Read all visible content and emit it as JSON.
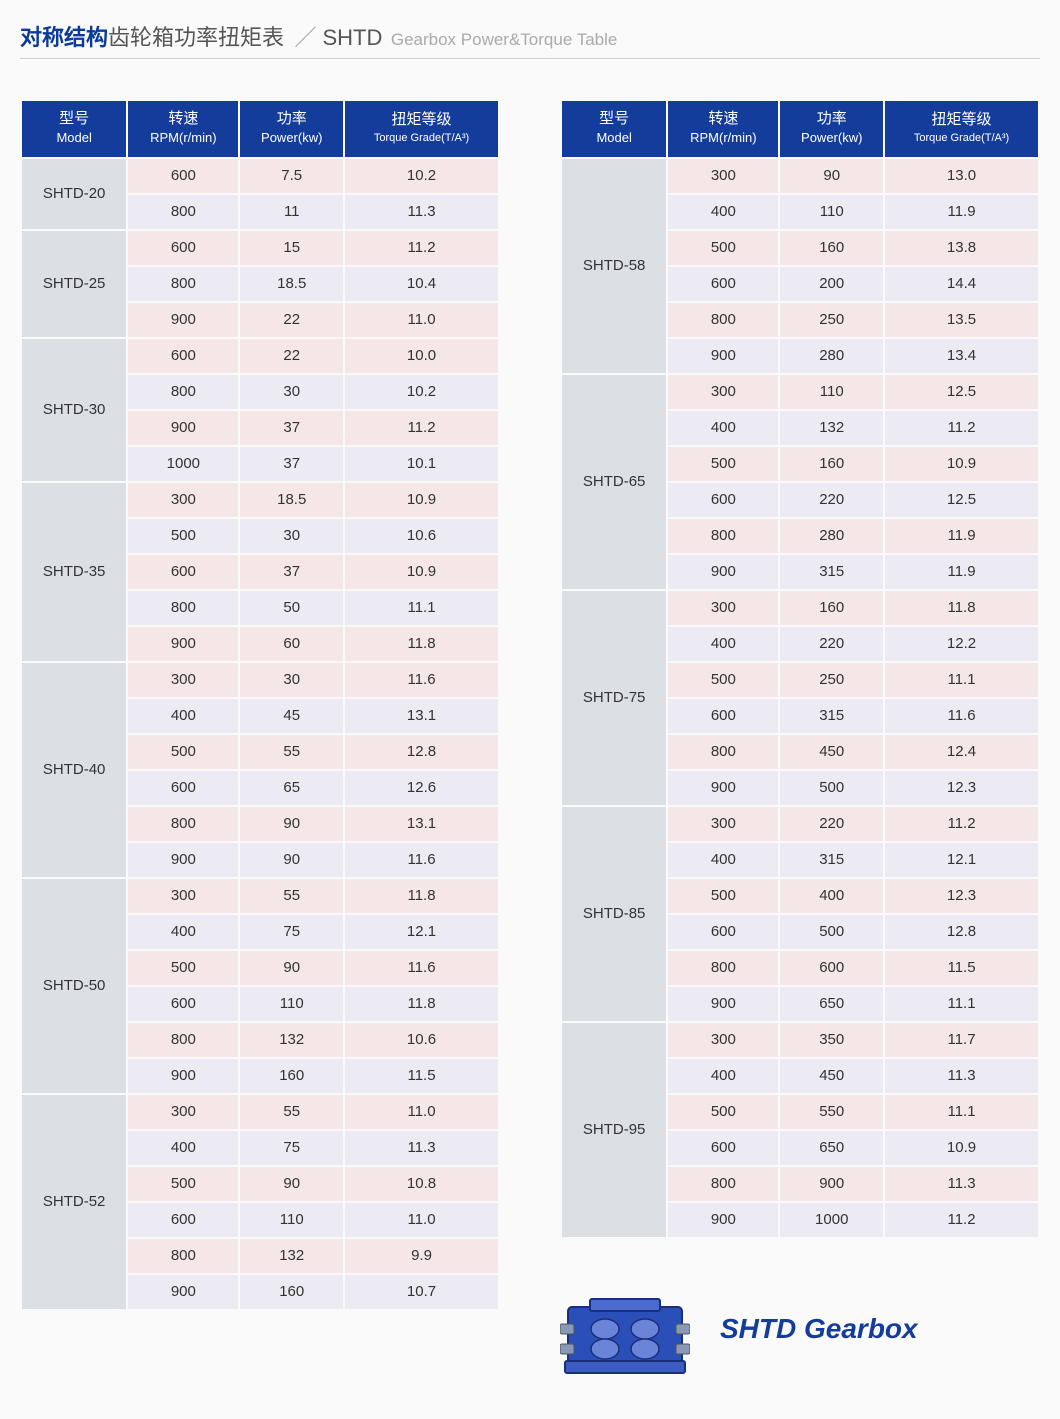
{
  "title": {
    "main_cn": "对称结构",
    "sub_cn": "齿轮箱功率扭矩表",
    "slash": "／",
    "code": "SHTD",
    "en": "Gearbox Power&Torque Table"
  },
  "headers": {
    "model_cn": "型号",
    "model_en": "Model",
    "rpm_cn": "转速",
    "rpm_en": "RPM(r/min)",
    "power_cn": "功率",
    "power_en": "Power(kw)",
    "torque_cn": "扭矩等级",
    "torque_en": "Torque Grade(T/A³)"
  },
  "colors": {
    "header_bg": "#143d9b",
    "model_bg": "#dcdfe4",
    "row_even": "#f5e6e8",
    "row_odd": "#eceaf2",
    "title_blue": "#0a3b9a"
  },
  "left_groups": [
    {
      "model": "SHTD-20",
      "rows": [
        {
          "rpm": "600",
          "power": "7.5",
          "torque": "10.2"
        },
        {
          "rpm": "800",
          "power": "11",
          "torque": "11.3"
        }
      ]
    },
    {
      "model": "SHTD-25",
      "rows": [
        {
          "rpm": "600",
          "power": "15",
          "torque": "11.2"
        },
        {
          "rpm": "800",
          "power": "18.5",
          "torque": "10.4"
        },
        {
          "rpm": "900",
          "power": "22",
          "torque": "11.0"
        }
      ]
    },
    {
      "model": "SHTD-30",
      "rows": [
        {
          "rpm": "600",
          "power": "22",
          "torque": "10.0"
        },
        {
          "rpm": "800",
          "power": "30",
          "torque": "10.2"
        },
        {
          "rpm": "900",
          "power": "37",
          "torque": "11.2"
        },
        {
          "rpm": "1000",
          "power": "37",
          "torque": "10.1"
        }
      ]
    },
    {
      "model": "SHTD-35",
      "rows": [
        {
          "rpm": "300",
          "power": "18.5",
          "torque": "10.9"
        },
        {
          "rpm": "500",
          "power": "30",
          "torque": "10.6"
        },
        {
          "rpm": "600",
          "power": "37",
          "torque": "10.9"
        },
        {
          "rpm": "800",
          "power": "50",
          "torque": "11.1"
        },
        {
          "rpm": "900",
          "power": "60",
          "torque": "11.8"
        }
      ]
    },
    {
      "model": "SHTD-40",
      "rows": [
        {
          "rpm": "300",
          "power": "30",
          "torque": "11.6"
        },
        {
          "rpm": "400",
          "power": "45",
          "torque": "13.1"
        },
        {
          "rpm": "500",
          "power": "55",
          "torque": "12.8"
        },
        {
          "rpm": "600",
          "power": "65",
          "torque": "12.6"
        },
        {
          "rpm": "800",
          "power": "90",
          "torque": "13.1"
        },
        {
          "rpm": "900",
          "power": "90",
          "torque": "11.6"
        }
      ]
    },
    {
      "model": "SHTD-50",
      "rows": [
        {
          "rpm": "300",
          "power": "55",
          "torque": "11.8"
        },
        {
          "rpm": "400",
          "power": "75",
          "torque": "12.1"
        },
        {
          "rpm": "500",
          "power": "90",
          "torque": "11.6"
        },
        {
          "rpm": "600",
          "power": "110",
          "torque": "11.8"
        },
        {
          "rpm": "800",
          "power": "132",
          "torque": "10.6"
        },
        {
          "rpm": "900",
          "power": "160",
          "torque": "11.5"
        }
      ]
    },
    {
      "model": "SHTD-52",
      "rows": [
        {
          "rpm": "300",
          "power": "55",
          "torque": "11.0"
        },
        {
          "rpm": "400",
          "power": "75",
          "torque": "11.3"
        },
        {
          "rpm": "500",
          "power": "90",
          "torque": "10.8"
        },
        {
          "rpm": "600",
          "power": "110",
          "torque": "11.0"
        },
        {
          "rpm": "800",
          "power": "132",
          "torque": "9.9"
        },
        {
          "rpm": "900",
          "power": "160",
          "torque": "10.7"
        }
      ]
    }
  ],
  "right_groups": [
    {
      "model": "SHTD-58",
      "rows": [
        {
          "rpm": "300",
          "power": "90",
          "torque": "13.0"
        },
        {
          "rpm": "400",
          "power": "110",
          "torque": "11.9"
        },
        {
          "rpm": "500",
          "power": "160",
          "torque": "13.8"
        },
        {
          "rpm": "600",
          "power": "200",
          "torque": "14.4"
        },
        {
          "rpm": "800",
          "power": "250",
          "torque": "13.5"
        },
        {
          "rpm": "900",
          "power": "280",
          "torque": "13.4"
        }
      ]
    },
    {
      "model": "SHTD-65",
      "rows": [
        {
          "rpm": "300",
          "power": "110",
          "torque": "12.5"
        },
        {
          "rpm": "400",
          "power": "132",
          "torque": "11.2"
        },
        {
          "rpm": "500",
          "power": "160",
          "torque": "10.9"
        },
        {
          "rpm": "600",
          "power": "220",
          "torque": "12.5"
        },
        {
          "rpm": "800",
          "power": "280",
          "torque": "11.9"
        },
        {
          "rpm": "900",
          "power": "315",
          "torque": "11.9"
        }
      ]
    },
    {
      "model": "SHTD-75",
      "rows": [
        {
          "rpm": "300",
          "power": "160",
          "torque": "11.8"
        },
        {
          "rpm": "400",
          "power": "220",
          "torque": "12.2"
        },
        {
          "rpm": "500",
          "power": "250",
          "torque": "11.1"
        },
        {
          "rpm": "600",
          "power": "315",
          "torque": "11.6"
        },
        {
          "rpm": "800",
          "power": "450",
          "torque": "12.4"
        },
        {
          "rpm": "900",
          "power": "500",
          "torque": "12.3"
        }
      ]
    },
    {
      "model": "SHTD-85",
      "rows": [
        {
          "rpm": "300",
          "power": "220",
          "torque": "11.2"
        },
        {
          "rpm": "400",
          "power": "315",
          "torque": "12.1"
        },
        {
          "rpm": "500",
          "power": "400",
          "torque": "12.3"
        },
        {
          "rpm": "600",
          "power": "500",
          "torque": "12.8"
        },
        {
          "rpm": "800",
          "power": "600",
          "torque": "11.5"
        },
        {
          "rpm": "900",
          "power": "650",
          "torque": "11.1"
        }
      ]
    },
    {
      "model": "SHTD-95",
      "rows": [
        {
          "rpm": "300",
          "power": "350",
          "torque": "11.7"
        },
        {
          "rpm": "400",
          "power": "450",
          "torque": "11.3"
        },
        {
          "rpm": "500",
          "power": "550",
          "torque": "11.1"
        },
        {
          "rpm": "600",
          "power": "650",
          "torque": "10.9"
        },
        {
          "rpm": "800",
          "power": "900",
          "torque": "11.3"
        },
        {
          "rpm": "900",
          "power": "1000",
          "torque": "11.2"
        }
      ]
    }
  ],
  "footer": {
    "label": "SHTD Gearbox"
  }
}
